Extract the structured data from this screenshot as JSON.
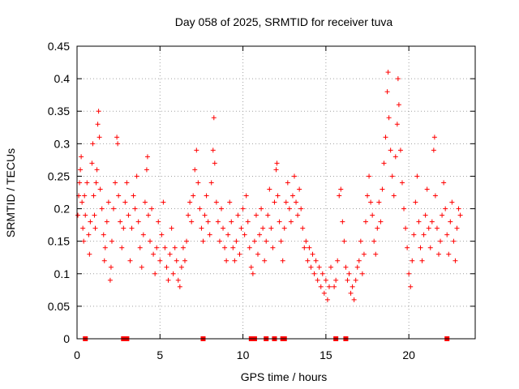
{
  "chart_data": {
    "type": "scatter",
    "title": "Day 058 of 2025, SRMTID for receiver tuva",
    "xlabel": "GPS time / hours",
    "ylabel": "SRMTID / TECUs",
    "xlim": [
      0,
      24
    ],
    "ylim": [
      0,
      0.45
    ],
    "xticks": [
      0,
      5,
      10,
      15,
      20
    ],
    "xtick_labels": [
      "0",
      "5",
      "10",
      "15",
      "20"
    ],
    "yticks": [
      0,
      0.05,
      0.1,
      0.15,
      0.2,
      0.25,
      0.3,
      0.35,
      0.4,
      0.45
    ],
    "ytick_labels": [
      "0",
      "0.05",
      "0.1",
      "0.15",
      "0.2",
      "0.25",
      "0.3",
      "0.35",
      "0.4",
      "0.45"
    ],
    "grid": true,
    "marker": "+",
    "color": "#ff0000",
    "series": [
      {
        "name": "SRMTID",
        "points": [
          [
            0.05,
            0.19
          ],
          [
            0.1,
            0.22
          ],
          [
            0.15,
            0.24
          ],
          [
            0.2,
            0.26
          ],
          [
            0.25,
            0.28
          ],
          [
            0.3,
            0.21
          ],
          [
            0.35,
            0.17
          ],
          [
            0.4,
            0.15
          ],
          [
            0.45,
            0.22
          ],
          [
            0.5,
            0.19
          ],
          [
            0.6,
            0.24
          ],
          [
            0.7,
            0.16
          ],
          [
            0.75,
            0.13
          ],
          [
            0.8,
            0.18
          ],
          [
            0.9,
            0.27
          ],
          [
            0.95,
            0.3
          ],
          [
            1.0,
            0.22
          ],
          [
            1.05,
            0.19
          ],
          [
            1.1,
            0.17
          ],
          [
            1.15,
            0.24
          ],
          [
            1.2,
            0.26
          ],
          [
            1.25,
            0.33
          ],
          [
            1.3,
            0.35
          ],
          [
            1.35,
            0.31
          ],
          [
            1.4,
            0.23
          ],
          [
            1.5,
            0.2
          ],
          [
            1.6,
            0.16
          ],
          [
            1.65,
            0.12
          ],
          [
            1.7,
            0.14
          ],
          [
            1.8,
            0.18
          ],
          [
            1.9,
            0.21
          ],
          [
            2.0,
            0.09
          ],
          [
            2.05,
            0.11
          ],
          [
            2.1,
            0.15
          ],
          [
            2.2,
            0.2
          ],
          [
            2.3,
            0.24
          ],
          [
            2.4,
            0.31
          ],
          [
            2.45,
            0.3
          ],
          [
            2.5,
            0.22
          ],
          [
            2.6,
            0.18
          ],
          [
            2.7,
            0.14
          ],
          [
            2.8,
            0.17
          ],
          [
            2.9,
            0.21
          ],
          [
            3.0,
            0.24
          ],
          [
            3.1,
            0.19
          ],
          [
            3.2,
            0.12
          ],
          [
            3.3,
            0.17
          ],
          [
            3.4,
            0.22
          ],
          [
            3.5,
            0.2
          ],
          [
            3.6,
            0.25
          ],
          [
            3.7,
            0.18
          ],
          [
            3.8,
            0.14
          ],
          [
            3.9,
            0.11
          ],
          [
            4.0,
            0.16
          ],
          [
            4.1,
            0.21
          ],
          [
            4.2,
            0.26
          ],
          [
            4.25,
            0.28
          ],
          [
            4.3,
            0.19
          ],
          [
            4.4,
            0.15
          ],
          [
            4.5,
            0.2
          ],
          [
            4.6,
            0.13
          ],
          [
            4.7,
            0.1
          ],
          [
            4.8,
            0.14
          ],
          [
            4.9,
            0.18
          ],
          [
            5.0,
            0.12
          ],
          [
            5.1,
            0.16
          ],
          [
            5.2,
            0.21
          ],
          [
            5.3,
            0.14
          ],
          [
            5.4,
            0.11
          ],
          [
            5.5,
            0.09
          ],
          [
            5.6,
            0.13
          ],
          [
            5.7,
            0.17
          ],
          [
            5.8,
            0.1
          ],
          [
            5.9,
            0.14
          ],
          [
            6.0,
            0.12
          ],
          [
            6.1,
            0.09
          ],
          [
            6.2,
            0.08
          ],
          [
            6.3,
            0.11
          ],
          [
            6.4,
            0.14
          ],
          [
            6.5,
            0.12
          ],
          [
            6.6,
            0.15
          ],
          [
            6.7,
            0.19
          ],
          [
            6.8,
            0.21
          ],
          [
            6.9,
            0.18
          ],
          [
            7.0,
            0.22
          ],
          [
            7.1,
            0.26
          ],
          [
            7.2,
            0.29
          ],
          [
            7.3,
            0.24
          ],
          [
            7.4,
            0.2
          ],
          [
            7.5,
            0.17
          ],
          [
            7.6,
            0.15
          ],
          [
            7.7,
            0.19
          ],
          [
            7.8,
            0.22
          ],
          [
            7.9,
            0.18
          ],
          [
            8.0,
            0.16
          ],
          [
            8.1,
            0.24
          ],
          [
            8.2,
            0.29
          ],
          [
            8.25,
            0.34
          ],
          [
            8.3,
            0.27
          ],
          [
            8.4,
            0.21
          ],
          [
            8.5,
            0.18
          ],
          [
            8.6,
            0.15
          ],
          [
            8.7,
            0.2
          ],
          [
            8.8,
            0.17
          ],
          [
            8.9,
            0.14
          ],
          [
            9.0,
            0.12
          ],
          [
            9.1,
            0.16
          ],
          [
            9.2,
            0.21
          ],
          [
            9.3,
            0.18
          ],
          [
            9.4,
            0.14
          ],
          [
            9.5,
            0.12
          ],
          [
            9.6,
            0.15
          ],
          [
            9.7,
            0.19
          ],
          [
            9.8,
            0.13
          ],
          [
            9.9,
            0.17
          ],
          [
            10.0,
            0.2
          ],
          [
            10.1,
            0.16
          ],
          [
            10.2,
            0.22
          ],
          [
            10.3,
            0.18
          ],
          [
            10.4,
            0.14
          ],
          [
            10.5,
            0.11
          ],
          [
            10.6,
            0.1
          ],
          [
            10.7,
            0.15
          ],
          [
            10.8,
            0.19
          ],
          [
            10.9,
            0.13
          ],
          [
            11.0,
            0.16
          ],
          [
            11.1,
            0.2
          ],
          [
            11.2,
            0.17
          ],
          [
            11.3,
            0.12
          ],
          [
            11.4,
            0.15
          ],
          [
            11.5,
            0.19
          ],
          [
            11.6,
            0.23
          ],
          [
            11.7,
            0.17
          ],
          [
            11.8,
            0.14
          ],
          [
            11.9,
            0.21
          ],
          [
            12.0,
            0.26
          ],
          [
            12.05,
            0.27
          ],
          [
            12.1,
            0.22
          ],
          [
            12.2,
            0.18
          ],
          [
            12.3,
            0.15
          ],
          [
            12.4,
            0.12
          ],
          [
            12.5,
            0.17
          ],
          [
            12.6,
            0.21
          ],
          [
            12.7,
            0.24
          ],
          [
            12.8,
            0.2
          ],
          [
            12.9,
            0.18
          ],
          [
            13.0,
            0.22
          ],
          [
            13.1,
            0.25
          ],
          [
            13.2,
            0.21
          ],
          [
            13.3,
            0.19
          ],
          [
            13.4,
            0.23
          ],
          [
            13.5,
            0.2
          ],
          [
            13.6,
            0.17
          ],
          [
            13.7,
            0.14
          ],
          [
            13.8,
            0.15
          ],
          [
            13.9,
            0.12
          ],
          [
            14.0,
            0.14
          ],
          [
            14.1,
            0.11
          ],
          [
            14.2,
            0.13
          ],
          [
            14.3,
            0.1
          ],
          [
            14.4,
            0.12
          ],
          [
            14.5,
            0.09
          ],
          [
            14.6,
            0.11
          ],
          [
            14.7,
            0.08
          ],
          [
            14.8,
            0.1
          ],
          [
            14.9,
            0.07
          ],
          [
            15.0,
            0.09
          ],
          [
            15.1,
            0.06
          ],
          [
            15.2,
            0.08
          ],
          [
            15.3,
            0.11
          ],
          [
            15.5,
            0.08
          ],
          [
            15.6,
            0.09
          ],
          [
            15.7,
            0.12
          ],
          [
            15.8,
            0.22
          ],
          [
            15.9,
            0.23
          ],
          [
            16.0,
            0.18
          ],
          [
            16.1,
            0.15
          ],
          [
            16.2,
            0.11
          ],
          [
            16.3,
            0.09
          ],
          [
            16.4,
            0.1
          ],
          [
            16.5,
            0.07
          ],
          [
            16.6,
            0.08
          ],
          [
            16.7,
            0.06
          ],
          [
            16.8,
            0.09
          ],
          [
            16.9,
            0.11
          ],
          [
            17.0,
            0.12
          ],
          [
            17.1,
            0.15
          ],
          [
            17.2,
            0.1
          ],
          [
            17.3,
            0.13
          ],
          [
            17.4,
            0.18
          ],
          [
            17.5,
            0.22
          ],
          [
            17.6,
            0.25
          ],
          [
            17.7,
            0.21
          ],
          [
            17.8,
            0.19
          ],
          [
            17.9,
            0.15
          ],
          [
            18.0,
            0.13
          ],
          [
            18.1,
            0.17
          ],
          [
            18.2,
            0.21
          ],
          [
            18.3,
            0.18
          ],
          [
            18.4,
            0.23
          ],
          [
            18.5,
            0.27
          ],
          [
            18.6,
            0.31
          ],
          [
            18.7,
            0.38
          ],
          [
            18.75,
            0.41
          ],
          [
            18.8,
            0.34
          ],
          [
            18.9,
            0.29
          ],
          [
            19.0,
            0.25
          ],
          [
            19.1,
            0.22
          ],
          [
            19.2,
            0.28
          ],
          [
            19.3,
            0.33
          ],
          [
            19.35,
            0.4
          ],
          [
            19.4,
            0.36
          ],
          [
            19.5,
            0.29
          ],
          [
            19.6,
            0.24
          ],
          [
            19.7,
            0.2
          ],
          [
            19.8,
            0.17
          ],
          [
            19.9,
            0.14
          ],
          [
            20.0,
            0.1
          ],
          [
            20.1,
            0.08
          ],
          [
            20.2,
            0.12
          ],
          [
            20.3,
            0.16
          ],
          [
            20.4,
            0.21
          ],
          [
            20.5,
            0.25
          ],
          [
            20.6,
            0.18
          ],
          [
            20.7,
            0.14
          ],
          [
            20.8,
            0.12
          ],
          [
            20.9,
            0.16
          ],
          [
            21.0,
            0.19
          ],
          [
            21.1,
            0.23
          ],
          [
            21.2,
            0.17
          ],
          [
            21.3,
            0.14
          ],
          [
            21.4,
            0.18
          ],
          [
            21.5,
            0.29
          ],
          [
            21.55,
            0.31
          ],
          [
            21.6,
            0.22
          ],
          [
            21.7,
            0.17
          ],
          [
            21.8,
            0.13
          ],
          [
            21.9,
            0.15
          ],
          [
            22.0,
            0.19
          ],
          [
            22.1,
            0.24
          ],
          [
            22.2,
            0.2
          ],
          [
            22.3,
            0.16
          ],
          [
            22.4,
            0.13
          ],
          [
            22.5,
            0.18
          ],
          [
            22.6,
            0.21
          ],
          [
            22.7,
            0.15
          ],
          [
            22.8,
            0.12
          ],
          [
            22.9,
            0.17
          ],
          [
            23.0,
            0.2
          ],
          [
            23.1,
            0.19
          ]
        ]
      }
    ],
    "zero_markers_x": [
      0.5,
      2.8,
      3.0,
      7.6,
      10.5,
      10.7,
      11.4,
      11.9,
      12.4,
      12.5,
      15.6,
      16.2,
      22.3
    ]
  }
}
